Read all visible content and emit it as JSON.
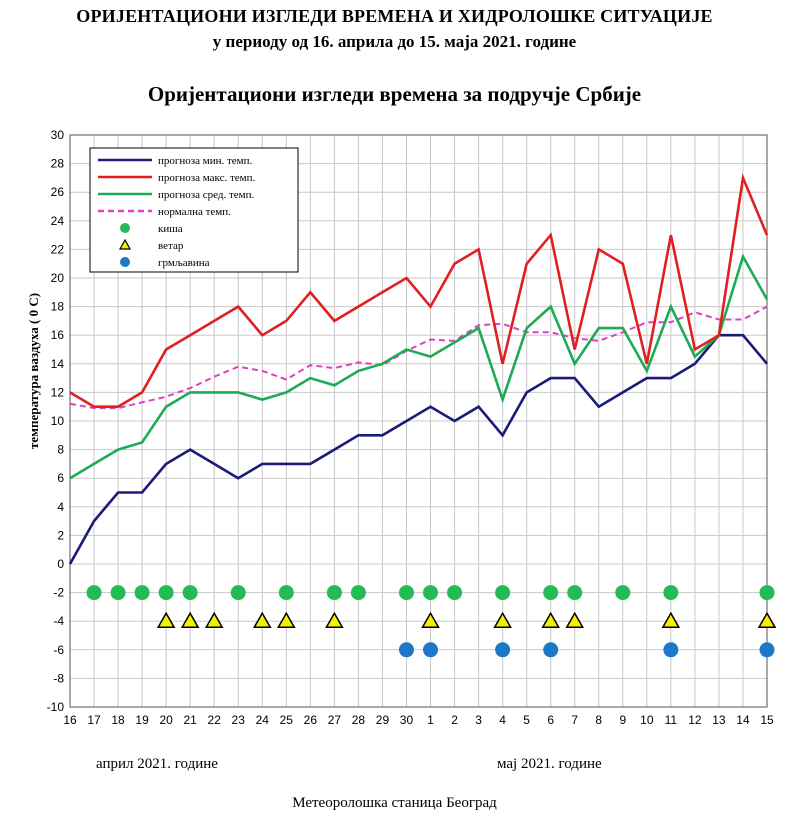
{
  "header": {
    "title_line1": "ОРИЈЕНТАЦИОНИ ИЗГЛЕДИ ВРЕМЕНА И ХИДРОЛОШКЕ СИТУАЦИЈЕ",
    "title_line2": "у  периоду од 16. априла до 15. маја 2021. године",
    "chart_title": "Оријентациони изгледи времена за подручје Србије"
  },
  "footer": {
    "month_april": "април 2021. године",
    "month_may": "мај 2021. године",
    "station": "Метеоролошка станица Београд"
  },
  "colors": {
    "min": "#1a1a7a",
    "max": "#e02020",
    "avg": "#1faa55",
    "normal": "#e040c0",
    "rain": "#22bb55",
    "wind": "#f2f200",
    "thunder": "#1e78c8",
    "grid": "#c8c8c8",
    "plot_bg": "#ffffff"
  },
  "chart_data": {
    "type": "line",
    "ylabel": "температура ваздуха   ( 0 C)",
    "ylim": [
      -10,
      30
    ],
    "yticks": [
      -10,
      -8,
      -6,
      -4,
      -2,
      0,
      2,
      4,
      6,
      8,
      10,
      12,
      14,
      16,
      18,
      20,
      22,
      24,
      26,
      28,
      30
    ],
    "grid": true,
    "legend_position": "top-left",
    "categories": [
      "16",
      "17",
      "18",
      "19",
      "20",
      "21",
      "22",
      "23",
      "24",
      "25",
      "26",
      "27",
      "28",
      "29",
      "30",
      "1",
      "2",
      "3",
      "4",
      "5",
      "6",
      "7",
      "8",
      "9",
      "10",
      "11",
      "12",
      "13",
      "14",
      "15"
    ],
    "series": [
      {
        "key": "min",
        "name": "прогноза  мин.  темп.",
        "style": "solid",
        "values": [
          0,
          3,
          5,
          5,
          7,
          8,
          7,
          6,
          7,
          7,
          7,
          8,
          9,
          9,
          10,
          11,
          10,
          11,
          9,
          12,
          13,
          13,
          11,
          12,
          13,
          13,
          14,
          16,
          16,
          14
        ]
      },
      {
        "key": "max",
        "name": "прогноза  макс.  темп.",
        "style": "solid",
        "values": [
          12,
          11,
          11,
          12,
          15,
          16,
          17,
          18,
          16,
          17,
          19,
          17,
          18,
          19,
          20,
          18,
          21,
          22,
          14,
          21,
          23,
          15,
          22,
          21,
          14,
          23,
          15,
          16,
          27,
          23
        ]
      },
      {
        "key": "avg",
        "name": "прогноза  сред.  темп.",
        "style": "solid",
        "values": [
          6,
          7,
          8,
          8.5,
          11,
          12,
          12,
          12,
          11.5,
          12,
          13,
          12.5,
          13.5,
          14,
          15,
          14.5,
          15.5,
          16.5,
          11.5,
          16.5,
          18,
          14,
          16.5,
          16.5,
          13.5,
          18,
          14.5,
          16,
          21.5,
          18.5
        ]
      },
      {
        "key": "normal",
        "name": "нормална   темп.",
        "style": "dashed",
        "values": [
          11.2,
          10.9,
          10.9,
          11.3,
          11.7,
          12.3,
          13.1,
          13.8,
          13.5,
          12.9,
          13.9,
          13.7,
          14.1,
          13.9,
          14.9,
          15.7,
          15.6,
          16.7,
          16.8,
          16.2,
          16.2,
          15.8,
          15.6,
          16.2,
          16.9,
          16.9,
          17.6,
          17.1,
          17.1,
          18.0
        ]
      }
    ],
    "markers": [
      {
        "key": "rain",
        "name": "киша",
        "shape": "circle",
        "y": -2,
        "days": [
          "17",
          "18",
          "19",
          "20",
          "21",
          "23",
          "25",
          "27",
          "28",
          "30",
          "1",
          "2",
          "4",
          "6",
          "7",
          "9",
          "11",
          "15"
        ]
      },
      {
        "key": "wind",
        "name": "ветар",
        "shape": "triangle",
        "y": -4,
        "days": [
          "20",
          "21",
          "22",
          "24",
          "25",
          "27",
          "1",
          "4",
          "6",
          "7",
          "11",
          "15"
        ]
      },
      {
        "key": "thunder",
        "name": "грмљавина",
        "shape": "circle",
        "y": -6,
        "days": [
          "30",
          "1",
          "4",
          "6",
          "11",
          "15"
        ]
      }
    ]
  }
}
